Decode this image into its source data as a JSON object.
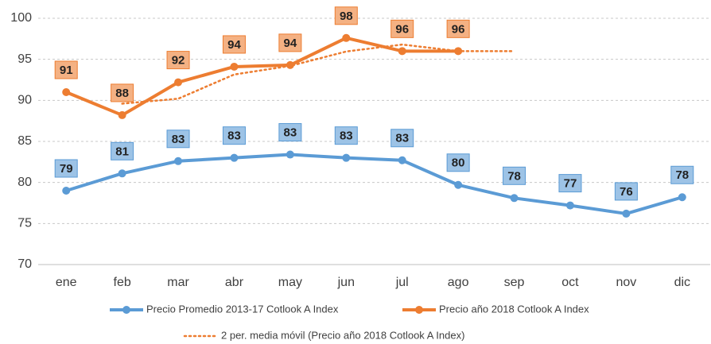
{
  "chart_data": {
    "type": "line",
    "categories": [
      "ene",
      "feb",
      "mar",
      "abr",
      "may",
      "jun",
      "jul",
      "ago",
      "sep",
      "oct",
      "nov",
      "dic"
    ],
    "series": [
      {
        "name": "Precio Promedio 2013-17 Cotlook  A Index",
        "color": "#5b9bd5",
        "markers": true,
        "values": [
          79.0,
          81.1,
          82.6,
          83.0,
          83.4,
          83.0,
          82.7,
          79.7,
          78.1,
          77.2,
          76.2,
          78.2
        ],
        "value_labels": [
          "79",
          "81",
          "83",
          "83",
          "83",
          "83",
          "83",
          "80",
          "78",
          "77",
          "76",
          "78"
        ],
        "label_fill": "#9dc3e6",
        "label_border": "#5b9bd5"
      },
      {
        "name": "Precio año 2018 Cotlook  A Index",
        "color": "#ed7d31",
        "markers": true,
        "values": [
          91.0,
          88.2,
          92.2,
          94.1,
          94.3,
          97.6,
          96.0,
          96.0,
          null,
          null,
          null,
          null
        ],
        "value_labels": [
          "91",
          "88",
          "92",
          "94",
          "94",
          "98",
          "96",
          "96",
          null,
          null,
          null,
          null
        ],
        "label_fill": "#f4b183",
        "label_border": "#ed7d31"
      },
      {
        "name": "2 per. media móvil (Precio año 2018 Cotlook  A Index)",
        "color": "#ed7d31",
        "dash": "dotted",
        "markers": false,
        "values": [
          null,
          89.6,
          90.2,
          93.15,
          94.2,
          95.95,
          96.8,
          96.0,
          96.0,
          null,
          null,
          null
        ]
      }
    ],
    "ylim": [
      70,
      100
    ],
    "yticks": [
      70,
      75,
      80,
      85,
      90,
      95,
      100
    ],
    "grid": true
  }
}
